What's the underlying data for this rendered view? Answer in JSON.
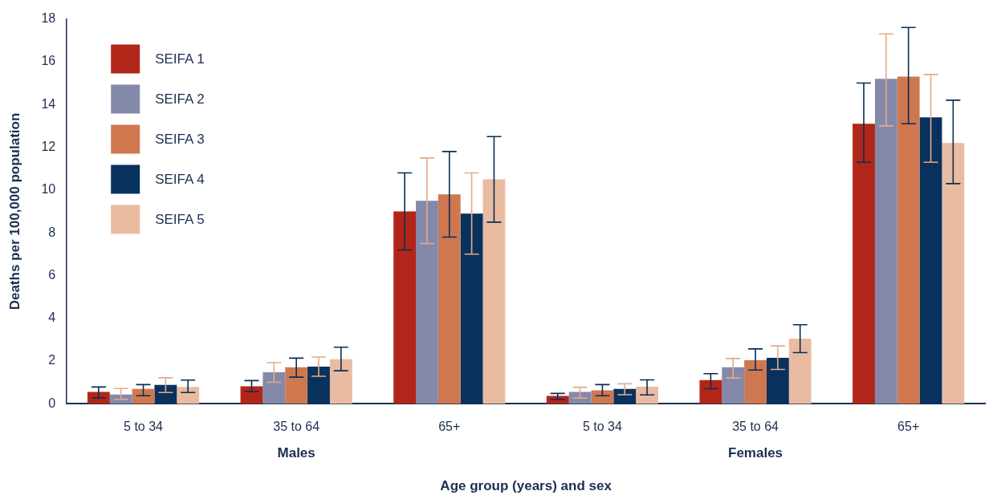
{
  "chart_data": {
    "type": "bar",
    "xlabel": "Age group (years) and sex",
    "ylabel": "Deaths per 100,000 population",
    "categories": [
      "5 to 34",
      "35 to 64",
      "65+",
      "5 to 34",
      "35 to 64",
      "65+"
    ],
    "annotations": [
      "Males",
      "Females"
    ],
    "ylim": [
      0,
      18
    ],
    "yticks": [
      0,
      2,
      4,
      6,
      8,
      10,
      12,
      14,
      16,
      18
    ],
    "grid": false,
    "legend": "top left",
    "series": [
      {
        "name": "SEIFA 1",
        "color": "#b22619",
        "values": [
          0.56,
          0.82,
          9.0,
          0.37,
          1.11,
          13.1
        ],
        "errors": [
          [
            0.28,
            0.79
          ],
          [
            0.58,
            1.09
          ],
          [
            7.2,
            10.8
          ],
          [
            0.2,
            0.49
          ],
          [
            0.71,
            1.41
          ],
          [
            11.3,
            15.0
          ]
        ]
      },
      {
        "name": "SEIFA 2",
        "color": "#8489aa",
        "values": [
          0.44,
          1.48,
          9.5,
          0.56,
          1.71,
          15.2
        ],
        "errors": [
          [
            0.21,
            0.72
          ],
          [
            1.01,
            1.93
          ],
          [
            7.5,
            11.5
          ],
          [
            0.27,
            0.78
          ],
          [
            1.21,
            2.12
          ],
          [
            13.0,
            17.3
          ]
        ]
      },
      {
        "name": "SEIFA 3",
        "color": "#cf7850",
        "values": [
          0.7,
          1.71,
          9.8,
          0.63,
          2.04,
          15.3
        ],
        "errors": [
          [
            0.38,
            0.9
          ],
          [
            1.25,
            2.14
          ],
          [
            7.8,
            11.8
          ],
          [
            0.38,
            0.9
          ],
          [
            1.58,
            2.57
          ],
          [
            13.1,
            17.6
          ]
        ]
      },
      {
        "name": "SEIFA 4",
        "color": "#08315e",
        "values": [
          0.89,
          1.74,
          8.9,
          0.7,
          2.15,
          13.4
        ],
        "errors": [
          [
            0.53,
            1.22
          ],
          [
            1.29,
            2.19
          ],
          [
            7.0,
            10.8
          ],
          [
            0.43,
            0.94
          ],
          [
            1.61,
            2.71
          ],
          [
            11.3,
            15.4
          ]
        ]
      },
      {
        "name": "SEIFA 5",
        "color": "#e9bba0",
        "values": [
          0.79,
          2.09,
          10.5,
          0.8,
          3.04,
          12.2
        ],
        "errors": [
          [
            0.53,
            1.11
          ],
          [
            1.55,
            2.65
          ],
          [
            8.5,
            12.5
          ],
          [
            0.42,
            1.12
          ],
          [
            2.4,
            3.7
          ],
          [
            10.3,
            14.2
          ]
        ]
      }
    ]
  }
}
